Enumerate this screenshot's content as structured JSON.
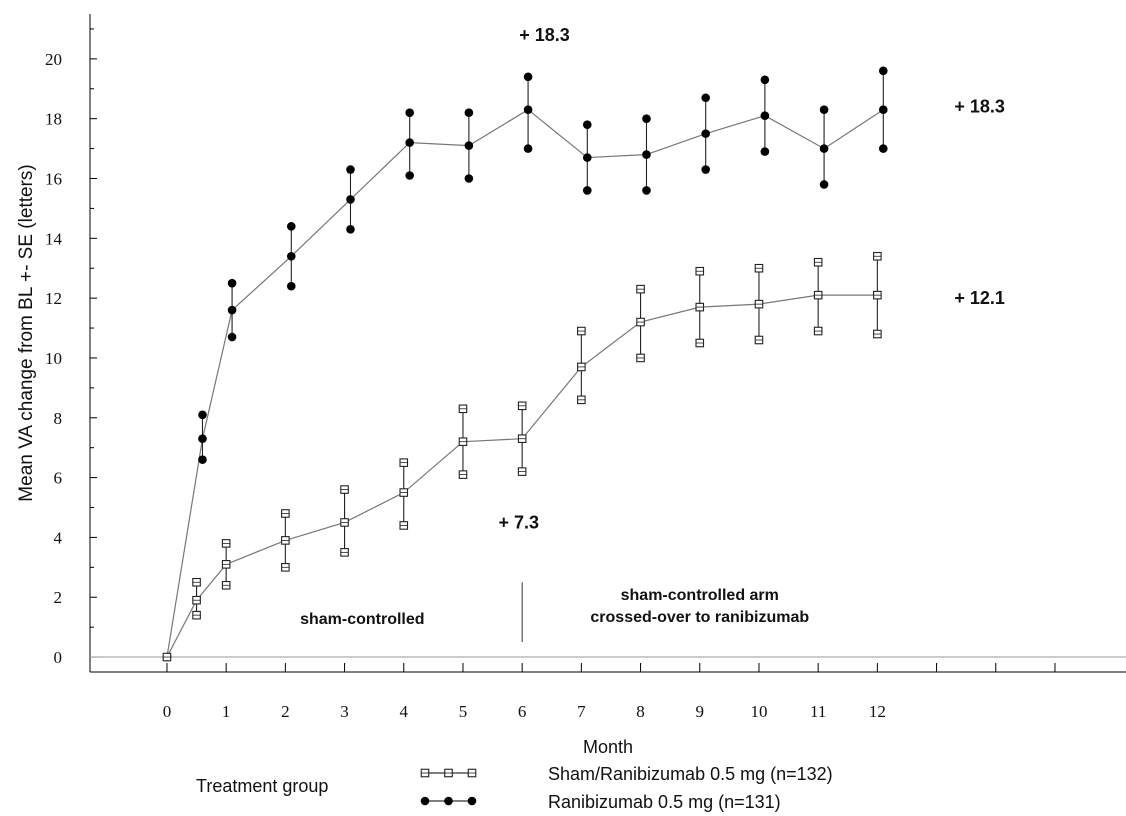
{
  "chart_data": {
    "type": "line",
    "xlabel": "Month",
    "ylabel": "Mean VA change from BL +- SE (letters)",
    "xlim": [
      -1.3,
      16.2
    ],
    "ylim": [
      -0.5,
      21.5
    ],
    "xticks": [
      0,
      1,
      2,
      3,
      4,
      5,
      6,
      7,
      8,
      9,
      10,
      11,
      12
    ],
    "yticks": [
      0,
      2,
      4,
      6,
      8,
      10,
      12,
      14,
      16,
      18,
      20
    ],
    "grid": false,
    "reference_line_y": 0,
    "legend": {
      "title": "Treatment group",
      "placement": "bottom"
    },
    "series": [
      {
        "name": "Ranibizumab 0.5 mg (n=131)",
        "marker": "filled-circle",
        "color": "#000000",
        "x": [
          0,
          0.6,
          1.1,
          2.1,
          3.1,
          4.1,
          5.1,
          6.1,
          7.1,
          8.1,
          9.1,
          10.1,
          11.1,
          12.1
        ],
        "y": [
          0,
          7.3,
          11.6,
          13.4,
          15.3,
          17.2,
          17.1,
          18.3,
          16.7,
          16.8,
          17.5,
          18.1,
          17.0,
          18.3
        ],
        "upper": [
          0,
          8.1,
          12.5,
          14.4,
          16.3,
          18.2,
          18.2,
          19.4,
          17.8,
          18.0,
          18.7,
          19.3,
          18.3,
          19.6
        ],
        "lower": [
          0,
          6.6,
          10.7,
          12.4,
          14.3,
          16.1,
          16.0,
          17.0,
          15.6,
          15.6,
          16.3,
          16.9,
          15.8,
          17.0
        ]
      },
      {
        "name": "Sham/Ranibizumab 0.5 mg (n=132)",
        "marker": "open-square",
        "color": "#000000",
        "x": [
          0,
          0.5,
          1.0,
          2.0,
          3.0,
          4.0,
          5.0,
          6.0,
          7.0,
          8.0,
          9.0,
          10.0,
          11.0,
          12.0
        ],
        "y": [
          0,
          1.9,
          3.1,
          3.9,
          4.5,
          5.5,
          7.2,
          7.3,
          9.7,
          11.2,
          11.7,
          11.8,
          12.1,
          12.1
        ],
        "upper": [
          0,
          2.5,
          3.8,
          4.8,
          5.6,
          6.5,
          8.3,
          8.4,
          10.9,
          12.3,
          12.9,
          13.0,
          13.2,
          13.4
        ],
        "lower": [
          0,
          1.4,
          2.4,
          3.0,
          3.5,
          4.4,
          6.1,
          6.2,
          8.6,
          10.0,
          10.5,
          10.6,
          10.9,
          10.8
        ]
      }
    ],
    "annotations": [
      {
        "text": "+ 18.3",
        "x": 5.95,
        "y": 20.6
      },
      {
        "text": "+ 18.3",
        "x": 13.3,
        "y": 18.2
      },
      {
        "text": "+ 12.1",
        "x": 13.3,
        "y": 11.8
      },
      {
        "text": "+ 7.3",
        "x": 5.6,
        "y": 4.3
      }
    ],
    "divider_x": 6.0,
    "regions": [
      {
        "lines": [
          "sham-controlled"
        ],
        "x": 3.3,
        "y": 1.1
      },
      {
        "lines": [
          "sham-controlled arm",
          "crossed-over to ranibizumab"
        ],
        "x": 9.0,
        "y": 1.9
      }
    ]
  }
}
